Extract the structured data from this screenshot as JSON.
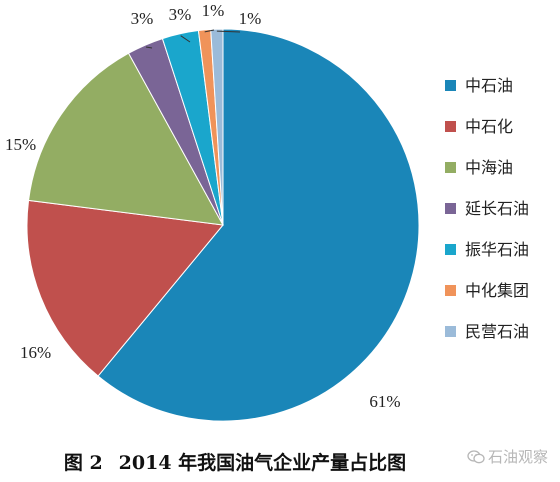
{
  "chart_data": {
    "type": "pie",
    "categories": [
      "中石油",
      "中石化",
      "中海油",
      "延长石油",
      "振华石油",
      "中化集团",
      "民营石油"
    ],
    "values": [
      61,
      16,
      15,
      3,
      3,
      1,
      1
    ],
    "labels": [
      "61%",
      "16%",
      "15%",
      "3%",
      "3%",
      "1%",
      "1%"
    ],
    "colors": [
      "#1a86b8",
      "#c0504d",
      "#93ad63",
      "#7a6596",
      "#1aa6cc",
      "#f0935a",
      "#9bbbd9"
    ],
    "legend_position": "right"
  },
  "caption": {
    "figure_no": "图 2",
    "text": "2014 年我国油气企业产量占比图"
  },
  "watermark": {
    "text": "石油观察",
    "icon": "wechat-icon"
  }
}
